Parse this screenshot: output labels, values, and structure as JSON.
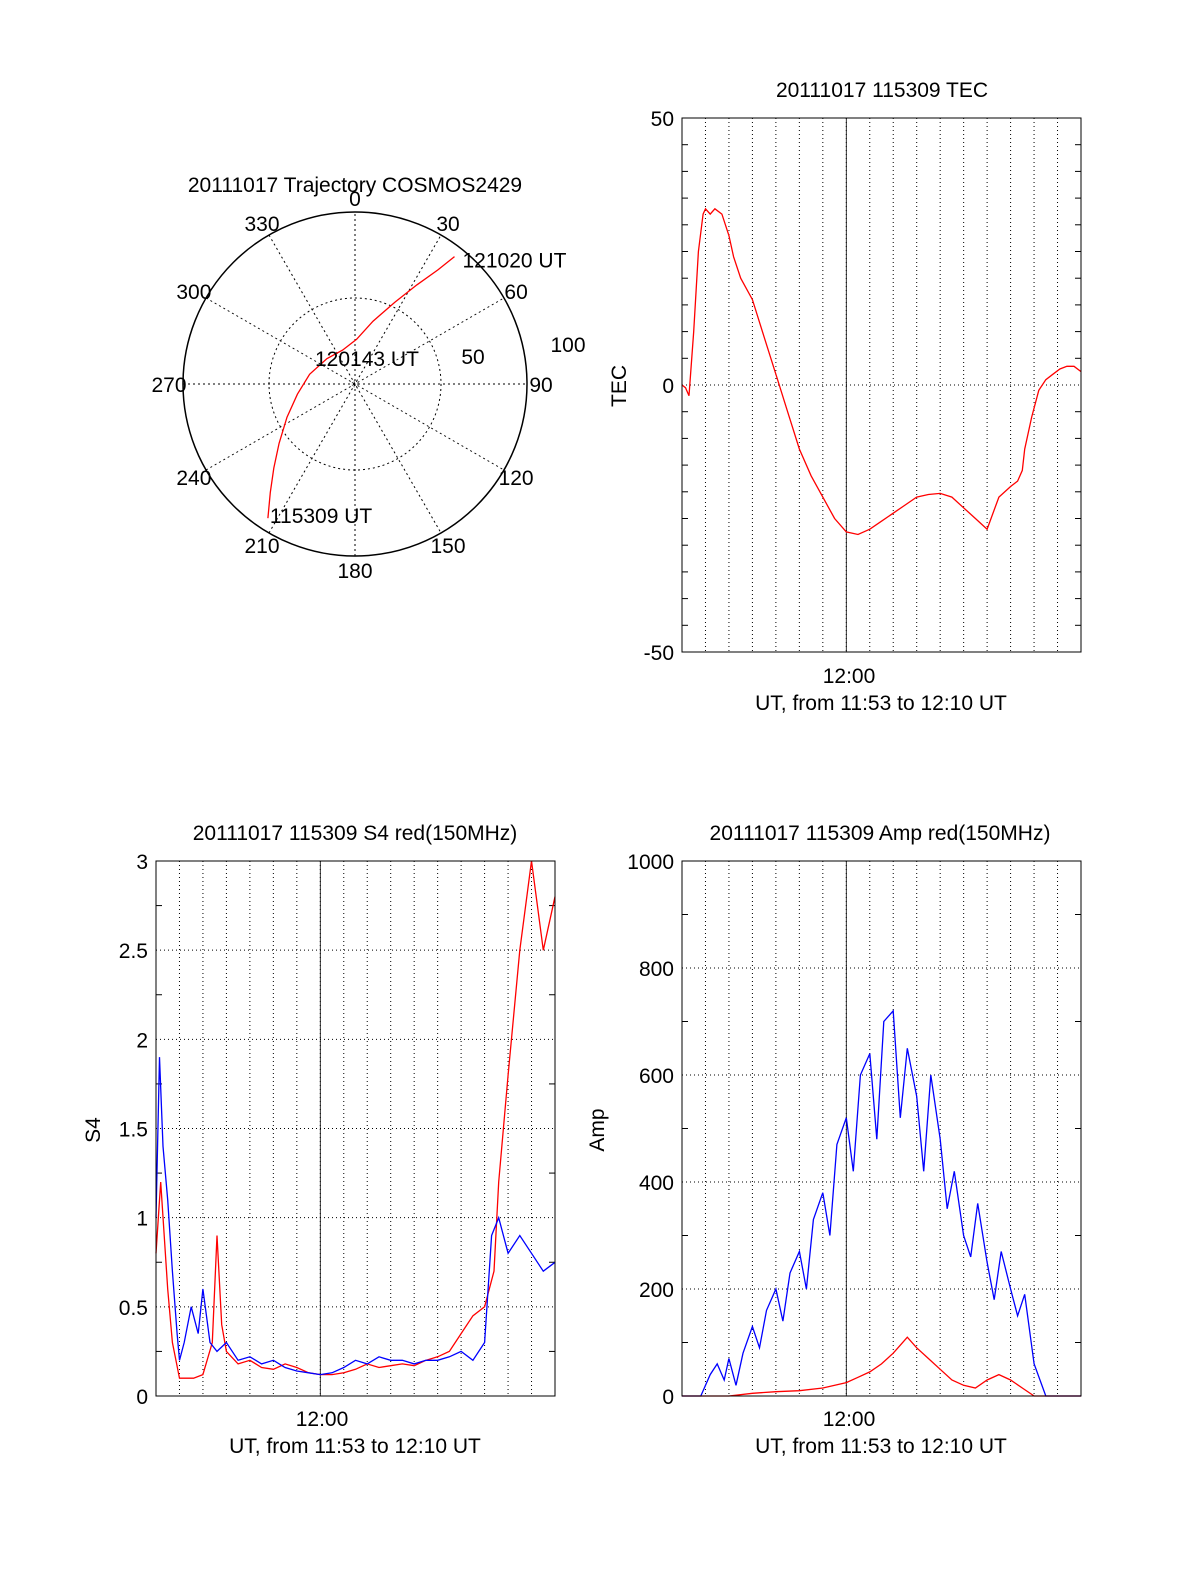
{
  "chart_data": [
    {
      "type": "polar",
      "title": "20111017 Trajectory COSMOS2429",
      "angle_labels": [
        "0",
        "30",
        "60",
        "90",
        "120",
        "150",
        "180",
        "210",
        "240",
        "270",
        "300",
        "330"
      ],
      "radial_labels": [
        "50",
        "100"
      ],
      "r_max": 100,
      "annotations": [
        {
          "text": "121020 UT",
          "az": 38,
          "r": 94
        },
        {
          "text": "120143 UT",
          "az": 0,
          "r": 0
        },
        {
          "text": "115309 UT",
          "az": 213,
          "r": 93
        }
      ],
      "series": [
        {
          "color": "#ff0000",
          "points": [
            [
              213,
              93
            ],
            [
              218,
              80
            ],
            [
              224,
              68
            ],
            [
              232,
              56
            ],
            [
              244,
              44
            ],
            [
              260,
              34
            ],
            [
              282,
              27
            ],
            [
              312,
              22
            ],
            [
              340,
              21
            ],
            [
              2,
              26
            ],
            [
              16,
              38
            ],
            [
              26,
              53
            ],
            [
              32,
              68
            ],
            [
              36,
              82
            ],
            [
              38,
              94
            ]
          ]
        }
      ]
    },
    {
      "type": "line",
      "title": "20111017 115309 TEC",
      "ylabel": "TEC",
      "xlabel": "UT, from 11:53 to 12:10 UT",
      "xtick_labels": [
        "12:00"
      ],
      "ytick_labels": [
        "50",
        "0",
        "-50"
      ],
      "xlim": [
        0,
        17
      ],
      "ylim": [
        -50,
        50
      ],
      "series": [
        {
          "color": "#ff0000",
          "x": [
            0,
            0.15,
            0.3,
            0.5,
            0.7,
            0.9,
            1.0,
            1.2,
            1.4,
            1.7,
            2.0,
            2.2,
            2.5,
            3.0,
            3.5,
            4.0,
            4.5,
            5.0,
            5.5,
            6.0,
            6.5,
            7.0,
            7.5,
            8.0,
            8.5,
            9.0,
            9.5,
            10.0,
            10.5,
            11.0,
            11.5,
            12.0,
            12.5,
            13.0,
            13.5,
            14.0,
            14.3,
            14.5,
            14.6,
            14.9,
            15.2,
            15.5,
            15.8,
            16.1,
            16.4,
            16.7,
            17.0
          ],
          "y": [
            0,
            -0.5,
            -2,
            10,
            25,
            32,
            33,
            32,
            33,
            32,
            28,
            24,
            20,
            16,
            9,
            2,
            -5,
            -12,
            -17,
            -21,
            -25,
            -27.5,
            -28,
            -27,
            -25.5,
            -24,
            -22.5,
            -21,
            -20.5,
            -20.3,
            -21,
            -23,
            -25,
            -27,
            -21,
            -19,
            -18,
            -16,
            -12,
            -6,
            -1,
            1,
            2,
            3,
            3.5,
            3.5,
            2.5
          ]
        }
      ]
    },
    {
      "type": "line",
      "title": "20111017 115309 S4 red(150MHz)",
      "ylabel": "S4",
      "xlabel": "UT, from 11:53 to 12:10 UT",
      "xtick_labels": [
        "12:00"
      ],
      "ytick_labels": [
        "0",
        "0.5",
        "1",
        "1.5",
        "2",
        "2.5",
        "3"
      ],
      "xlim": [
        0,
        17
      ],
      "ylim": [
        0,
        3
      ],
      "series": [
        {
          "color": "#ff0000",
          "x": [
            0,
            0.2,
            0.35,
            0.5,
            0.7,
            1.0,
            1.3,
            1.6,
            2.0,
            2.4,
            2.6,
            2.8,
            3.0,
            3.5,
            4.0,
            4.5,
            5.0,
            5.5,
            6.0,
            6.5,
            7.0,
            7.5,
            8.0,
            8.5,
            9.0,
            9.5,
            10.0,
            10.5,
            11.0,
            11.5,
            12.0,
            12.5,
            13.0,
            13.5,
            14.0,
            14.4,
            14.6,
            14.8,
            15.0,
            15.5,
            16.0,
            16.5,
            17.0
          ],
          "y": [
            0.8,
            1.2,
            0.9,
            0.6,
            0.3,
            0.1,
            0.1,
            0.1,
            0.12,
            0.3,
            0.9,
            0.4,
            0.25,
            0.18,
            0.2,
            0.16,
            0.15,
            0.18,
            0.16,
            0.13,
            0.12,
            0.12,
            0.13,
            0.15,
            0.18,
            0.16,
            0.17,
            0.18,
            0.17,
            0.2,
            0.22,
            0.25,
            0.35,
            0.45,
            0.5,
            0.7,
            1.2,
            1.5,
            1.8,
            2.5,
            3.0,
            2.5,
            2.8
          ]
        }
      ],
      "series_blue": [
        {
          "color": "#0000ff",
          "x": [
            0,
            0.15,
            0.3,
            0.5,
            0.7,
            0.9,
            1.0,
            1.2,
            1.5,
            1.8,
            2.0,
            2.3,
            2.6,
            3.0,
            3.5,
            4.0,
            4.5,
            5.0,
            5.5,
            6.0,
            6.5,
            7.0,
            7.5,
            8.0,
            8.5,
            9.0,
            9.5,
            10.0,
            10.5,
            11.0,
            11.5,
            12.0,
            12.5,
            13.0,
            13.5,
            14.0,
            14.3,
            14.6,
            15.0,
            15.5,
            16.0,
            16.5,
            17.0
          ],
          "y": [
            1.0,
            1.9,
            1.4,
            1.1,
            0.7,
            0.35,
            0.2,
            0.3,
            0.5,
            0.35,
            0.6,
            0.3,
            0.25,
            0.3,
            0.2,
            0.22,
            0.18,
            0.2,
            0.16,
            0.14,
            0.13,
            0.12,
            0.13,
            0.16,
            0.2,
            0.18,
            0.22,
            0.2,
            0.2,
            0.18,
            0.2,
            0.2,
            0.22,
            0.25,
            0.2,
            0.3,
            0.9,
            1.0,
            0.8,
            0.9,
            0.8,
            0.7,
            0.75
          ]
        }
      ]
    },
    {
      "type": "line",
      "title": "20111017 115309 Amp red(150MHz)",
      "ylabel": "Amp",
      "xlabel": "UT, from 11:53 to 12:10 UT",
      "xtick_labels": [
        "12:00"
      ],
      "ytick_labels": [
        "0",
        "200",
        "400",
        "600",
        "800",
        "1000"
      ],
      "xlim": [
        0,
        17
      ],
      "ylim": [
        0,
        1000
      ],
      "series": [
        {
          "color": "#0000ff",
          "x": [
            0,
            0.8,
            1.2,
            1.5,
            1.8,
            2.0,
            2.3,
            2.6,
            3.0,
            3.3,
            3.6,
            4.0,
            4.3,
            4.6,
            5.0,
            5.3,
            5.6,
            6.0,
            6.3,
            6.6,
            7.0,
            7.3,
            7.6,
            8.0,
            8.3,
            8.6,
            9.0,
            9.3,
            9.6,
            10.0,
            10.3,
            10.6,
            11.0,
            11.3,
            11.6,
            12.0,
            12.3,
            12.6,
            13.0,
            13.3,
            13.6,
            14.0,
            14.3,
            14.6,
            15.0,
            15.5,
            16.0,
            17.0
          ],
          "y": [
            0,
            0,
            40,
            60,
            30,
            70,
            20,
            80,
            130,
            90,
            160,
            200,
            140,
            230,
            270,
            200,
            330,
            380,
            300,
            470,
            520,
            420,
            600,
            640,
            480,
            700,
            720,
            520,
            650,
            560,
            420,
            600,
            480,
            350,
            420,
            300,
            260,
            360,
            250,
            180,
            270,
            200,
            150,
            190,
            60,
            0,
            0,
            0
          ]
        },
        {
          "color": "#ff0000",
          "x": [
            0,
            2.0,
            3.0,
            4.0,
            5.0,
            6.0,
            7.0,
            7.5,
            8.0,
            8.5,
            9.0,
            9.3,
            9.6,
            10.0,
            10.5,
            11.0,
            11.5,
            12.0,
            12.5,
            13.0,
            13.5,
            14.0,
            14.5,
            15.0,
            17.0
          ],
          "y": [
            0,
            0,
            5,
            8,
            10,
            15,
            25,
            35,
            45,
            60,
            80,
            95,
            110,
            90,
            70,
            50,
            30,
            20,
            15,
            30,
            40,
            30,
            15,
            0,
            0
          ]
        }
      ]
    }
  ]
}
